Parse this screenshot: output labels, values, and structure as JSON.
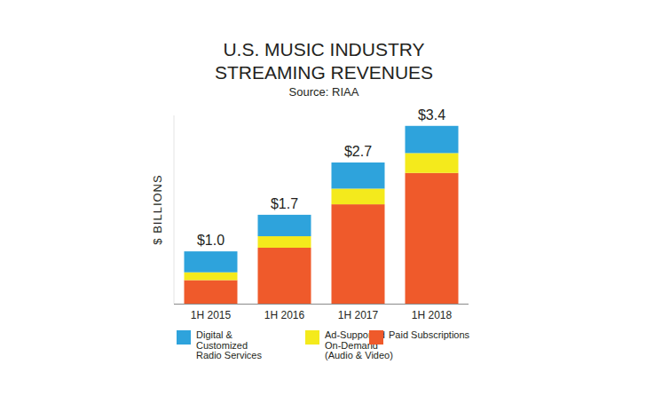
{
  "chart_data": {
    "type": "bar",
    "stacked": true,
    "title": "U.S. MUSIC INDUSTRY STREAMING REVENUES",
    "subtitle": "Source: RIAA",
    "y_label": "$ BILLIONS",
    "categories": [
      "1H 2015",
      "1H 2016",
      "1H 2017",
      "1H 2018"
    ],
    "series": [
      {
        "name": "Digital & Customized Radio Services",
        "color": "#2ea3dc",
        "values": [
          0.4,
          0.41,
          0.5,
          0.52
        ]
      },
      {
        "name": "Ad-Supported On-Demand (Audio & Video)",
        "color": "#f4ea1c",
        "values": [
          0.15,
          0.22,
          0.3,
          0.38
        ]
      },
      {
        "name": "Paid Subscriptions",
        "color": "#ef5a2b",
        "values": [
          0.45,
          1.07,
          1.9,
          2.5
        ]
      }
    ],
    "totals": [
      1.0,
      1.7,
      2.7,
      3.4
    ],
    "total_labels": [
      "$1.0",
      "$1.7",
      "$2.7",
      "$3.4"
    ],
    "ylim": [
      0,
      3.6
    ],
    "yticks": [],
    "tick_labels": "x",
    "legend": "bottom",
    "grid": false
  }
}
